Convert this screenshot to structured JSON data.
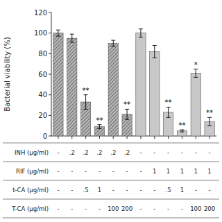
{
  "chart_data": {
    "type": "bar",
    "ylabel": "Bacterial viability (%)",
    "categories": [
      null,
      null,
      null,
      null,
      null,
      null,
      null,
      null,
      null,
      null,
      null,
      null
    ],
    "series": [
      {
        "color": "#b0b0b0",
        "values": [
          100,
          95,
          33,
          9,
          90,
          21,
          null,
          null,
          null,
          null,
          null,
          null
        ],
        "errors": [
          3,
          4,
          7,
          2,
          3,
          5,
          null,
          null,
          null,
          null,
          null,
          null
        ],
        "annotations": [
          null,
          null,
          "**",
          "**",
          null,
          "**",
          null,
          null,
          null,
          null,
          null,
          null
        ]
      },
      {
        "color": "#c8c8c8",
        "values": [
          null,
          null,
          null,
          null,
          null,
          null,
          100,
          82,
          23,
          5,
          61,
          14
        ],
        "errors": [
          null,
          null,
          null,
          null,
          null,
          null,
          4,
          6,
          5,
          1,
          4,
          4
        ],
        "annotations": [
          null,
          null,
          null,
          null,
          null,
          null,
          null,
          null,
          "**",
          "**",
          "*",
          "**"
        ]
      }
    ],
    "ylim": [
      0,
      120
    ],
    "yticks": [
      0,
      20,
      40,
      60,
      80,
      100,
      120
    ],
    "grid": false,
    "table": [
      {
        "label": "INH (μg/ml)",
        "values": [
          "-",
          ".2",
          ".2",
          ".2",
          ".2",
          ".2",
          "-",
          "-",
          "-",
          "-",
          "-",
          "-"
        ]
      },
      {
        "label": "RIF (μg/ml)",
        "values": [
          "-",
          "-",
          "-",
          "-",
          "-",
          "-",
          "-",
          "1",
          "1",
          "1",
          "1",
          "1"
        ]
      },
      {
        "label": "t-CA (μg/ml)",
        "values": [
          "-",
          "-",
          ".5",
          "1",
          "-",
          "-",
          "-",
          "-",
          ".5",
          "1",
          "-",
          "-"
        ]
      },
      {
        "label": "T-CA (μg/ml)",
        "values": [
          "-",
          "-",
          "-",
          "-",
          "100",
          "200",
          "-",
          "-",
          "-",
          "-",
          "100",
          "200"
        ]
      }
    ]
  }
}
